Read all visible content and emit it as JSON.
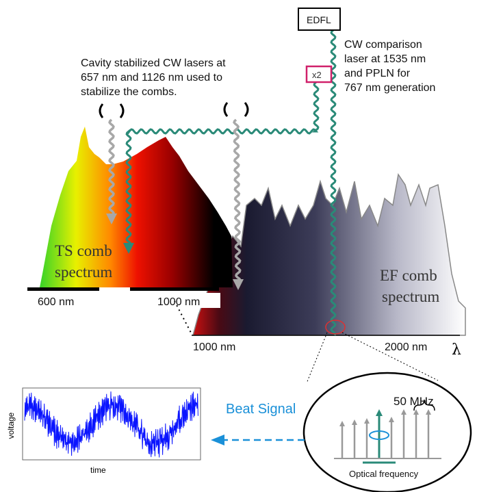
{
  "laser_box": {
    "label": "EDFL"
  },
  "cw_note": {
    "lines": [
      "CW comparison",
      "laser at 1535 nm",
      "and PPLN for",
      "767 nm generation"
    ]
  },
  "doubler_box": {
    "label": "x2"
  },
  "cavity_note": {
    "lines": [
      "Cavity stabilized CW lasers at",
      "657 nm and 1126 nm used to",
      "stabilize the combs."
    ]
  },
  "ts_comb": {
    "lines": [
      "TS comb",
      "spectrum"
    ],
    "axis_labels": [
      "600 nm",
      "1000 nm"
    ]
  },
  "ef_comb": {
    "lines": [
      "EF comb",
      "spectrum"
    ],
    "axis_labels": [
      "1000 nm",
      "2000 nm"
    ],
    "axis_symbol": "λ"
  },
  "inset": {
    "y_label": "voltage",
    "x_label": "time"
  },
  "beat_label": "Beat Signal",
  "zoom": {
    "spacing_label": "50 MHz",
    "x_label": "Optical frequency"
  }
}
